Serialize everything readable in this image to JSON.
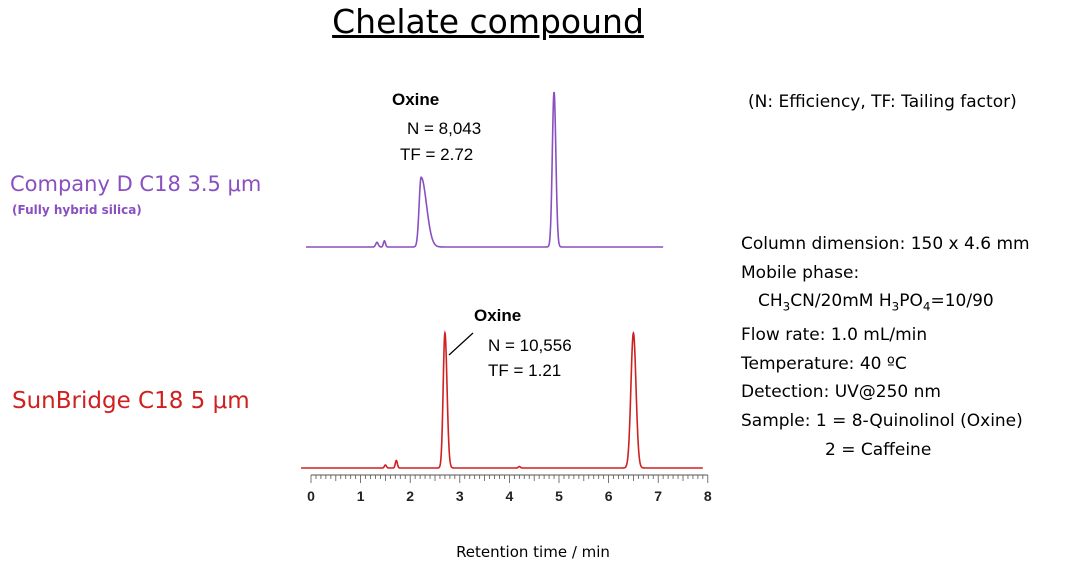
{
  "title": "Chelate compound",
  "columns": [
    {
      "name": "Company D C18  3.5 μm",
      "subtitle": "(Fully hybrid silica)",
      "color": "#8a4fc0"
    },
    {
      "name": "SunBridge C18   5 μm",
      "subtitle": "",
      "color": "#d02020"
    }
  ],
  "annotations": {
    "top": {
      "peak": "Oxine",
      "n": "N = 8,043",
      "tf": "TF = 2.72"
    },
    "bottom": {
      "peak": "Oxine",
      "n": "N = 10,556",
      "tf": "TF = 1.21"
    }
  },
  "legend_note": "(N: Efficiency,  TF: Tailing factor)",
  "conditions": {
    "column_dimension": "Column dimension: 150 x 4.6 mm",
    "mobile_phase_label": "Mobile phase:",
    "mobile_phase_value": "CH3CN/20mM H3PO4=10/90",
    "flow_rate": "Flow rate: 1.0 mL/min",
    "temperature": "Temperature: 40 ºC",
    "detection": "Detection: UV@250 nm",
    "sample_1": "Sample: 1 = 8-Quinolinol (Oxine)",
    "sample_2": "2 = Caffeine"
  },
  "chart_data": {
    "type": "line",
    "xlabel": "Retention time / min",
    "ylabel": "",
    "xlim": [
      0,
      8
    ],
    "x_ticks": [
      "0",
      "1",
      "2",
      "3",
      "4",
      "5",
      "6",
      "7",
      "8"
    ],
    "grid": false,
    "series": [
      {
        "name": "Company D C18  3.5 μm",
        "color": "#8a4fc0",
        "peaks": [
          {
            "rt": 1.33,
            "height": 0.03,
            "width": 0.025
          },
          {
            "rt": 1.48,
            "height": 0.04,
            "width": 0.02
          },
          {
            "rt": 2.22,
            "height": 0.45,
            "width": 0.04,
            "tail": 2.72
          },
          {
            "rt": 4.9,
            "height": 1.0,
            "width": 0.035
          }
        ]
      },
      {
        "name": "SunBridge C18   5 μm",
        "color": "#d02020",
        "peaks": [
          {
            "rt": 1.5,
            "height": 0.02,
            "width": 0.02
          },
          {
            "rt": 1.72,
            "height": 0.05,
            "width": 0.02
          },
          {
            "rt": 2.7,
            "height": 0.9,
            "width": 0.035,
            "tail": 1.21
          },
          {
            "rt": 4.2,
            "height": 0.01,
            "width": 0.02
          },
          {
            "rt": 6.5,
            "height": 0.9,
            "width": 0.05
          }
        ]
      }
    ]
  }
}
